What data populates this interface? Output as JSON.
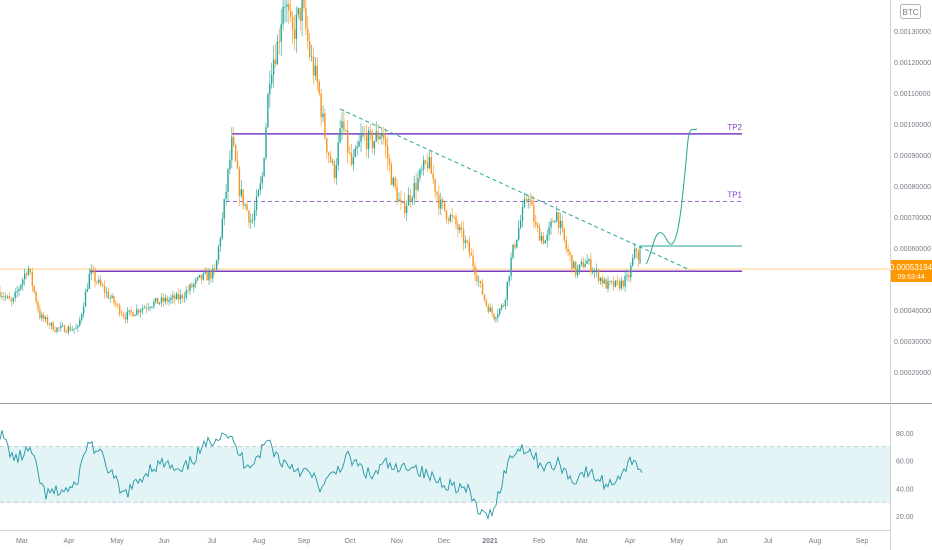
{
  "currency_badge": "BTC",
  "price_label": {
    "value": "0.00053194",
    "countdown": "09:53:44"
  },
  "chart_data": {
    "type": "candlestick",
    "title": "",
    "x_axis": {
      "tick_labels": [
        "Mar",
        "Apr",
        "May",
        "Jun",
        "Jul",
        "Aug",
        "Sep",
        "Oct",
        "Nov",
        "Dec",
        "2021",
        "Feb",
        "Mar",
        "Apr",
        "May",
        "Jun",
        "Jul",
        "Aug",
        "Sep"
      ]
    },
    "y_axis": {
      "ylim": [
        0.0001,
        0.0014
      ],
      "tick_values": [
        0.0002,
        0.0003,
        0.0004,
        0.0005,
        0.0006,
        0.0007,
        0.0008,
        0.0009,
        0.001,
        0.0011,
        0.0012,
        0.0013
      ],
      "tick_labels": [
        "0.00020000",
        "0.00030000",
        "0.00040000",
        "0.00050000",
        "0.00060000",
        "0.00070000",
        "0.00080000",
        "0.00090000",
        "0.00100000",
        "0.00110000",
        "0.00120000",
        "0.00130000"
      ]
    },
    "price_series_anchors": [
      [
        0,
        0.00046
      ],
      [
        12,
        0.00042
      ],
      [
        28,
        0.00054
      ],
      [
        40,
        0.00038
      ],
      [
        55,
        0.00034
      ],
      [
        78,
        0.00034
      ],
      [
        90,
        0.00052
      ],
      [
        105,
        0.00046
      ],
      [
        125,
        0.00038
      ],
      [
        150,
        0.00042
      ],
      [
        180,
        0.00044
      ],
      [
        200,
        0.0005
      ],
      [
        215,
        0.00052
      ],
      [
        222,
        0.00068
      ],
      [
        232,
        0.00094
      ],
      [
        240,
        0.00078
      ],
      [
        252,
        0.00068
      ],
      [
        262,
        0.00082
      ],
      [
        270,
        0.00118
      ],
      [
        278,
        0.00126
      ],
      [
        284,
        0.00142
      ],
      [
        292,
        0.00128
      ],
      [
        302,
        0.00138
      ],
      [
        310,
        0.00122
      ],
      [
        318,
        0.00112
      ],
      [
        326,
        0.00094
      ],
      [
        334,
        0.00084
      ],
      [
        342,
        0.001
      ],
      [
        352,
        0.00086
      ],
      [
        362,
        0.00096
      ],
      [
        372,
        0.00094
      ],
      [
        382,
        0.00098
      ],
      [
        392,
        0.00082
      ],
      [
        402,
        0.00072
      ],
      [
        415,
        0.0008
      ],
      [
        428,
        0.00088
      ],
      [
        440,
        0.00074
      ],
      [
        455,
        0.00068
      ],
      [
        468,
        0.0006
      ],
      [
        478,
        0.0005
      ],
      [
        486,
        0.00042
      ],
      [
        494,
        0.00038
      ],
      [
        504,
        0.00042
      ],
      [
        512,
        0.00058
      ],
      [
        520,
        0.00068
      ],
      [
        528,
        0.00078
      ],
      [
        536,
        0.00066
      ],
      [
        546,
        0.00062
      ],
      [
        556,
        0.00072
      ],
      [
        566,
        0.0006
      ],
      [
        576,
        0.00052
      ],
      [
        586,
        0.00056
      ],
      [
        596,
        0.00052
      ],
      [
        606,
        0.00048
      ],
      [
        618,
        0.00048
      ],
      [
        628,
        0.0005
      ],
      [
        636,
        0.0006
      ],
      [
        642,
        0.00053
      ]
    ],
    "levels": [
      {
        "name": "TP2",
        "price": 0.000968,
        "style": "solid",
        "color": "#7b3fc4"
      },
      {
        "name": "TP1",
        "price": 0.00075,
        "style": "dashed",
        "color": "#7b3fc4"
      },
      {
        "name": "",
        "price": 0.000525,
        "style": "solid",
        "color": "#7b3fc4"
      }
    ],
    "last_price": 0.00053194,
    "rsi": {
      "ylim": [
        10,
        100
      ],
      "tick_values": [
        20,
        40,
        60,
        80
      ],
      "tick_labels": [
        "20.00",
        "40.00",
        "60.00",
        "80.00"
      ],
      "band": [
        30,
        70
      ],
      "anchors": [
        [
          0,
          80
        ],
        [
          15,
          60
        ],
        [
          30,
          68
        ],
        [
          45,
          35
        ],
        [
          60,
          38
        ],
        [
          75,
          40
        ],
        [
          88,
          74
        ],
        [
          100,
          64
        ],
        [
          112,
          50
        ],
        [
          122,
          35
        ],
        [
          135,
          42
        ],
        [
          150,
          55
        ],
        [
          165,
          58
        ],
        [
          180,
          50
        ],
        [
          198,
          65
        ],
        [
          212,
          75
        ],
        [
          225,
          82
        ],
        [
          235,
          70
        ],
        [
          245,
          58
        ],
        [
          255,
          60
        ],
        [
          268,
          75
        ],
        [
          280,
          60
        ],
        [
          295,
          55
        ],
        [
          310,
          50
        ],
        [
          322,
          40
        ],
        [
          335,
          52
        ],
        [
          348,
          62
        ],
        [
          360,
          55
        ],
        [
          372,
          48
        ],
        [
          385,
          58
        ],
        [
          398,
          52
        ],
        [
          410,
          58
        ],
        [
          425,
          50
        ],
        [
          440,
          45
        ],
        [
          455,
          42
        ],
        [
          468,
          38
        ],
        [
          478,
          25
        ],
        [
          486,
          18
        ],
        [
          496,
          30
        ],
        [
          506,
          55
        ],
        [
          516,
          68
        ],
        [
          526,
          70
        ],
        [
          540,
          58
        ],
        [
          550,
          55
        ],
        [
          560,
          58
        ],
        [
          572,
          45
        ],
        [
          584,
          52
        ],
        [
          596,
          48
        ],
        [
          608,
          42
        ],
        [
          620,
          50
        ],
        [
          634,
          62
        ],
        [
          642,
          52
        ]
      ]
    }
  }
}
